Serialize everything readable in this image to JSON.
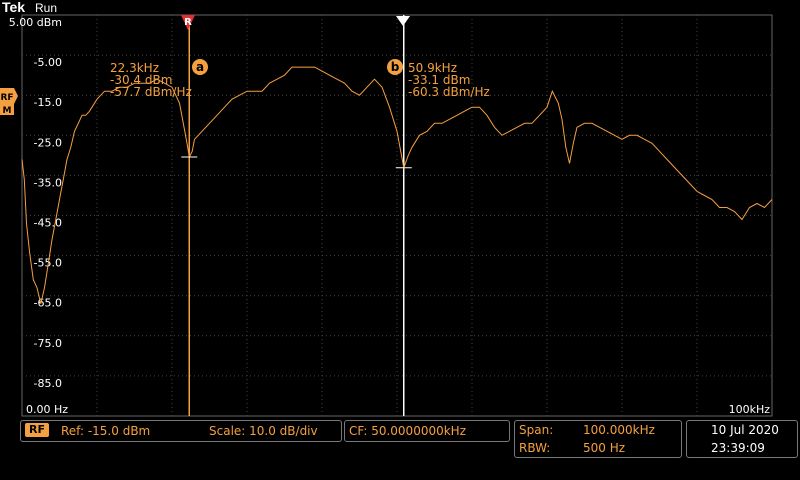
{
  "header": {
    "logo": "Tek",
    "run_state": "Run"
  },
  "graticule": {
    "y_labels": [
      "5.00 dBm",
      "-5.00",
      "-15.0",
      "-25.0",
      "-35.0",
      "-45.0",
      "-55.0",
      "-65.0",
      "-75.0",
      "-85.0"
    ],
    "x_start": "0.00 Hz",
    "x_end": "100kHz"
  },
  "channel_marker": {
    "top": "RF",
    "bottom": "M"
  },
  "reference_marker": "R",
  "marker_a": {
    "letter": "a",
    "freq": "22.3kHz",
    "power": "-30.4 dBm",
    "density": "-57.7 dBm/Hz"
  },
  "marker_b": {
    "letter": "b",
    "freq": "50.9kHz",
    "power": "-33.1 dBm",
    "density": "-60.3 dBm/Hz"
  },
  "status": {
    "channel": "RF",
    "ref": "Ref: -15.0 dBm",
    "scale": "Scale: 10.0 dB/div",
    "cf": "CF:  50.0000000kHz",
    "span_label": "Span:",
    "span_value": "100.000kHz",
    "rbw_label": "RBW:",
    "rbw_value": "500 Hz",
    "date": "10 Jul  2020",
    "time": "23:39:09"
  },
  "colors": {
    "trace": "#f5a040",
    "grid": "#555555",
    "marker_line": "#f5a040",
    "marker_b_line": "#ffffff"
  },
  "chart_data": {
    "type": "line",
    "x_unit": "kHz",
    "y_unit": "dBm",
    "xlim": [
      0,
      100
    ],
    "ylim": [
      -95,
      5
    ],
    "points": [
      [
        0,
        -31
      ],
      [
        0.3,
        -36
      ],
      [
        0.6,
        -47
      ],
      [
        1,
        -54
      ],
      [
        1.5,
        -61
      ],
      [
        2,
        -63
      ],
      [
        2.5,
        -67
      ],
      [
        3,
        -63
      ],
      [
        3.5,
        -57
      ],
      [
        4,
        -51
      ],
      [
        4.5,
        -46
      ],
      [
        5,
        -41
      ],
      [
        5.5,
        -36
      ],
      [
        6,
        -31
      ],
      [
        6.5,
        -28
      ],
      [
        7,
        -24
      ],
      [
        7.5,
        -22
      ],
      [
        8,
        -20
      ],
      [
        8.5,
        -20
      ],
      [
        9,
        -19
      ],
      [
        10,
        -16
      ],
      [
        11,
        -14
      ],
      [
        12,
        -14
      ],
      [
        13,
        -13
      ],
      [
        14,
        -13
      ],
      [
        15,
        -12
      ],
      [
        16,
        -12
      ],
      [
        17,
        -12
      ],
      [
        18,
        -11
      ],
      [
        19,
        -12
      ],
      [
        20,
        -13
      ],
      [
        21,
        -17
      ],
      [
        21.5,
        -22
      ],
      [
        22,
        -27
      ],
      [
        22.3,
        -30.4
      ],
      [
        22.7,
        -29
      ],
      [
        23,
        -26
      ],
      [
        24,
        -24
      ],
      [
        25,
        -22
      ],
      [
        26,
        -20
      ],
      [
        27,
        -18
      ],
      [
        28,
        -16
      ],
      [
        29,
        -15
      ],
      [
        30,
        -14
      ],
      [
        31,
        -14
      ],
      [
        32,
        -14
      ],
      [
        33,
        -12
      ],
      [
        34,
        -11
      ],
      [
        35,
        -10
      ],
      [
        36,
        -8
      ],
      [
        37,
        -8
      ],
      [
        38,
        -8
      ],
      [
        39,
        -8
      ],
      [
        40,
        -9
      ],
      [
        41,
        -10
      ],
      [
        42,
        -11
      ],
      [
        43,
        -12
      ],
      [
        44,
        -14
      ],
      [
        45,
        -15
      ],
      [
        46,
        -13
      ],
      [
        47,
        -11
      ],
      [
        48,
        -13
      ],
      [
        49,
        -18
      ],
      [
        50,
        -24
      ],
      [
        50.9,
        -33.1
      ],
      [
        51.5,
        -30
      ],
      [
        52,
        -28
      ],
      [
        53,
        -25
      ],
      [
        54,
        -24
      ],
      [
        55,
        -22
      ],
      [
        56,
        -22
      ],
      [
        57,
        -21
      ],
      [
        58,
        -20
      ],
      [
        59,
        -19
      ],
      [
        60,
        -18
      ],
      [
        61,
        -18
      ],
      [
        62,
        -20
      ],
      [
        63,
        -23
      ],
      [
        64,
        -25
      ],
      [
        65,
        -24
      ],
      [
        66,
        -23
      ],
      [
        67,
        -22
      ],
      [
        68,
        -22
      ],
      [
        69,
        -20
      ],
      [
        70,
        -18
      ],
      [
        70.7,
        -14
      ],
      [
        71.5,
        -17
      ],
      [
        72,
        -21
      ],
      [
        72.5,
        -28
      ],
      [
        73,
        -32
      ],
      [
        73.5,
        -27
      ],
      [
        74,
        -23
      ],
      [
        75,
        -22
      ],
      [
        76,
        -22
      ],
      [
        77,
        -23
      ],
      [
        78,
        -24
      ],
      [
        79,
        -25
      ],
      [
        80,
        -26
      ],
      [
        81,
        -25
      ],
      [
        82,
        -25
      ],
      [
        83,
        -26
      ],
      [
        84,
        -27
      ],
      [
        85,
        -29
      ],
      [
        86,
        -31
      ],
      [
        87,
        -33
      ],
      [
        88,
        -35
      ],
      [
        89,
        -37
      ],
      [
        90,
        -39
      ],
      [
        91,
        -40
      ],
      [
        92,
        -41
      ],
      [
        93,
        -43
      ],
      [
        94,
        -43
      ],
      [
        95,
        -44
      ],
      [
        96,
        -46
      ],
      [
        97,
        -43
      ],
      [
        98,
        -42
      ],
      [
        99,
        -43
      ],
      [
        100,
        -41
      ]
    ]
  }
}
